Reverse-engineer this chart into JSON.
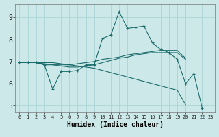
{
  "xlabel": "Humidex (Indice chaleur)",
  "ylabel": "",
  "xlim": [
    -0.5,
    23.5
  ],
  "ylim": [
    4.7,
    9.6
  ],
  "bg_color": "#cce8e8",
  "line_color": "#1a6b6b",
  "grid_color": "#aad4d4",
  "series": [
    {
      "x": [
        0,
        1,
        2,
        3,
        4,
        5,
        6,
        7,
        8,
        9,
        10,
        11,
        12,
        13,
        14,
        15,
        16,
        17,
        18,
        19,
        20,
        21,
        22
      ],
      "y": [
        6.95,
        6.95,
        6.95,
        6.85,
        5.75,
        6.55,
        6.55,
        6.6,
        6.85,
        6.85,
        8.05,
        8.2,
        9.25,
        8.5,
        8.55,
        8.6,
        7.85,
        7.55,
        7.4,
        7.1,
        6.0,
        6.45,
        4.9
      ],
      "marker": true
    },
    {
      "x": [
        0,
        1,
        2,
        3,
        4,
        5,
        6,
        7,
        8,
        9,
        10,
        11,
        12,
        13,
        14,
        15,
        16,
        17,
        18,
        19,
        20
      ],
      "y": [
        6.95,
        6.95,
        6.95,
        6.85,
        6.85,
        6.85,
        6.85,
        6.9,
        6.95,
        7.0,
        7.1,
        7.15,
        7.2,
        7.3,
        7.35,
        7.4,
        7.45,
        7.5,
        7.5,
        7.5,
        7.15
      ],
      "marker": false
    },
    {
      "x": [
        0,
        1,
        2,
        3,
        4,
        5,
        6,
        7,
        8,
        9,
        10,
        11,
        12,
        13,
        14,
        15,
        16,
        17,
        18,
        19,
        20
      ],
      "y": [
        6.95,
        6.95,
        6.95,
        6.95,
        6.95,
        6.9,
        6.85,
        6.8,
        6.75,
        6.7,
        6.6,
        6.5,
        6.4,
        6.3,
        6.2,
        6.1,
        6.0,
        5.9,
        5.8,
        5.7,
        5.05
      ],
      "marker": false
    },
    {
      "x": [
        0,
        1,
        2,
        3,
        4,
        5,
        6,
        7,
        8,
        9,
        10,
        11,
        12,
        13,
        14,
        15,
        16,
        17,
        18,
        19,
        20
      ],
      "y": [
        6.95,
        6.95,
        6.95,
        6.9,
        6.85,
        6.8,
        6.75,
        6.75,
        6.8,
        6.85,
        6.95,
        7.05,
        7.15,
        7.2,
        7.3,
        7.35,
        7.4,
        7.4,
        7.4,
        7.4,
        7.1
      ],
      "marker": false
    }
  ]
}
